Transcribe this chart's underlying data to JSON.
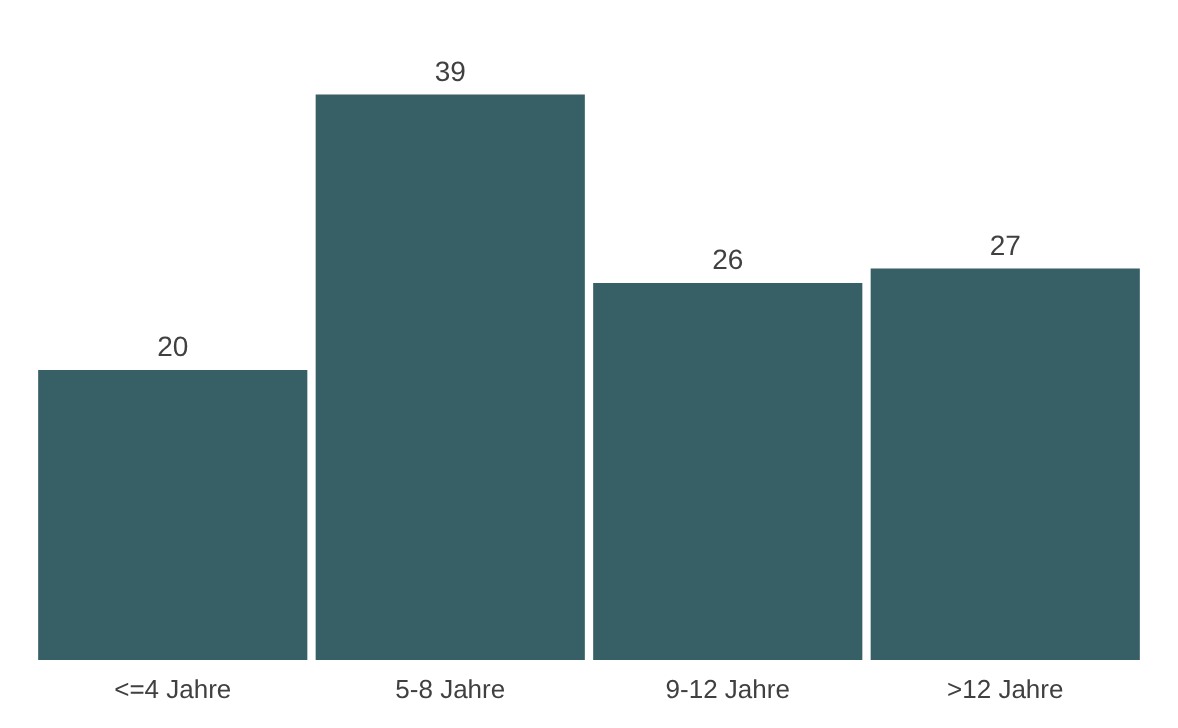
{
  "chart_data": {
    "type": "bar",
    "categories": [
      "<=4 Jahre",
      "5-8 Jahre",
      "9-12 Jahre",
      ">12 Jahre"
    ],
    "values": [
      20,
      39,
      26,
      27
    ],
    "color": "#365f66",
    "data_labels": true
  }
}
